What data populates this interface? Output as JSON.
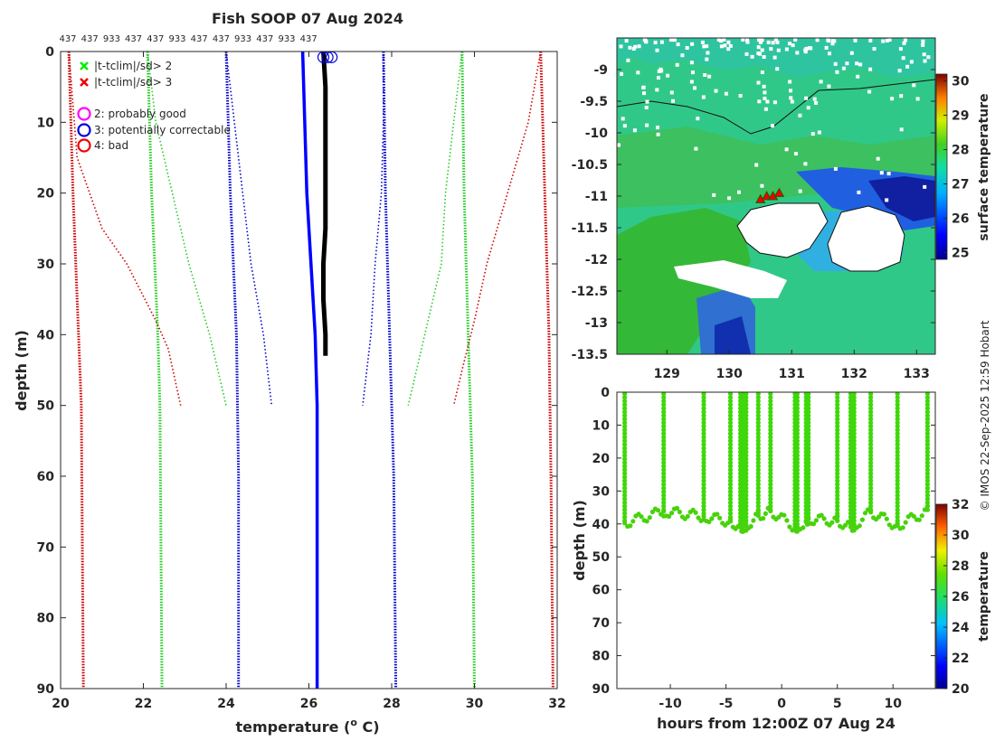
{
  "title": "Fish SOOP 07 Aug 2024",
  "watermark": "© IMOS 22-Sep-2025 12:59 Hobart",
  "chart_data": [
    {
      "id": "profile",
      "type": "line",
      "xlabel": "temperature (",
      "xlabel_sup": "o",
      "xlabel_suffix": " C)",
      "ylabel": "depth (m)",
      "xlim": [
        20,
        32
      ],
      "ylim": [
        0,
        90
      ],
      "xticks": [
        20,
        22,
        24,
        26,
        28,
        30,
        32
      ],
      "yticks": [
        0,
        10,
        20,
        30,
        40,
        50,
        60,
        70,
        80,
        90
      ],
      "top_labels": [
        "437",
        "437",
        "933",
        "437",
        "437",
        "933",
        "437",
        "437",
        "933",
        "437",
        "933",
        "437"
      ],
      "legend": [
        {
          "symbol": "x",
          "color": "#00ee00",
          "label": "|t-tclim|/sd> 2"
        },
        {
          "symbol": "x",
          "color": "#ee0000",
          "label": "|t-tclim|/sd> 3"
        },
        {
          "symbol": "o",
          "color": "#ff00ff",
          "label": "2: probably good"
        },
        {
          "symbol": "o",
          "color": "#0000dd",
          "label": "3: potentially correctable"
        },
        {
          "symbol": "o",
          "color": "#ee0000",
          "label": "4: bad"
        }
      ],
      "series": [
        {
          "name": "clim-3sd-low",
          "color": "#cc0000",
          "style": "dotted",
          "points": [
            [
              20.2,
              0
            ],
            [
              20.3,
              20
            ],
            [
              20.4,
              35
            ],
            [
              20.5,
              50
            ],
            [
              20.55,
              90
            ]
          ]
        },
        {
          "name": "clim-3sd-high",
          "color": "#cc0000",
          "style": "dotted",
          "points": [
            [
              31.6,
              0
            ],
            [
              31.7,
              20
            ],
            [
              31.8,
              40
            ],
            [
              31.85,
              60
            ],
            [
              31.9,
              90
            ]
          ]
        },
        {
          "name": "clim-2sd-low",
          "color": "#22cc22",
          "style": "dotted",
          "points": [
            [
              22.1,
              0
            ],
            [
              22.2,
              20
            ],
            [
              22.35,
              40
            ],
            [
              22.4,
              50
            ],
            [
              22.45,
              90
            ]
          ]
        },
        {
          "name": "clim-2sd-high",
          "color": "#22cc22",
          "style": "dotted",
          "points": [
            [
              29.7,
              0
            ],
            [
              29.75,
              20
            ],
            [
              29.85,
              40
            ],
            [
              29.95,
              60
            ],
            [
              30.0,
              90
            ]
          ]
        },
        {
          "name": "clim-1sd-low",
          "color": "#0000cc",
          "style": "dotted",
          "points": [
            [
              24.0,
              0
            ],
            [
              24.1,
              20
            ],
            [
              24.25,
              40
            ],
            [
              24.3,
              60
            ],
            [
              24.3,
              90
            ]
          ]
        },
        {
          "name": "clim-1sd-high",
          "color": "#0000cc",
          "style": "dotted",
          "points": [
            [
              27.8,
              0
            ],
            [
              27.85,
              20
            ],
            [
              27.95,
              40
            ],
            [
              28.05,
              60
            ],
            [
              28.1,
              90
            ]
          ]
        },
        {
          "name": "local-3sd-low",
          "color": "#cc0000",
          "style": "thin-dotted",
          "points": [
            [
              20.2,
              0
            ],
            [
              20.4,
              15
            ],
            [
              21.0,
              25
            ],
            [
              21.6,
              30
            ],
            [
              22.3,
              38
            ],
            [
              22.6,
              42
            ],
            [
              22.9,
              50
            ]
          ]
        },
        {
          "name": "local-3sd-high",
          "color": "#cc0000",
          "style": "thin-dotted",
          "points": [
            [
              31.6,
              0
            ],
            [
              31.3,
              10
            ],
            [
              30.8,
              20
            ],
            [
              30.3,
              30
            ],
            [
              30.0,
              38
            ],
            [
              29.7,
              45
            ],
            [
              29.5,
              50
            ]
          ]
        },
        {
          "name": "local-2sd-low",
          "color": "#22cc22",
          "style": "thin-dotted",
          "points": [
            [
              22.1,
              0
            ],
            [
              22.3,
              10
            ],
            [
              22.7,
              20
            ],
            [
              23.1,
              30
            ],
            [
              23.6,
              40
            ],
            [
              24.0,
              50
            ]
          ]
        },
        {
          "name": "local-2sd-high",
          "color": "#22cc22",
          "style": "thin-dotted",
          "points": [
            [
              29.7,
              0
            ],
            [
              29.5,
              10
            ],
            [
              29.3,
              20
            ],
            [
              29.2,
              30
            ],
            [
              28.8,
              40
            ],
            [
              28.4,
              50
            ]
          ]
        },
        {
          "name": "local-1sd-low",
          "color": "#0000cc",
          "style": "thin-dotted",
          "points": [
            [
              24.0,
              0
            ],
            [
              24.2,
              10
            ],
            [
              24.4,
              20
            ],
            [
              24.6,
              30
            ],
            [
              24.9,
              40
            ],
            [
              25.1,
              50
            ]
          ]
        },
        {
          "name": "local-1sd-high",
          "color": "#0000cc",
          "style": "thin-dotted",
          "points": [
            [
              27.8,
              0
            ],
            [
              27.8,
              10
            ],
            [
              27.75,
              20
            ],
            [
              27.6,
              30
            ],
            [
              27.5,
              40
            ],
            [
              27.3,
              50
            ]
          ]
        },
        {
          "name": "climatology-mean",
          "color": "#0000ff",
          "style": "solid",
          "points": [
            [
              25.85,
              0
            ],
            [
              25.9,
              10
            ],
            [
              25.95,
              20
            ],
            [
              26.05,
              30
            ],
            [
              26.15,
              40
            ],
            [
              26.2,
              50
            ],
            [
              26.2,
              70
            ],
            [
              26.2,
              90
            ]
          ]
        },
        {
          "name": "xbt-profile",
          "color": "#000000",
          "style": "thick",
          "points": [
            [
              26.35,
              0
            ],
            [
              26.4,
              5
            ],
            [
              26.4,
              15
            ],
            [
              26.4,
              25
            ],
            [
              26.35,
              30
            ],
            [
              26.35,
              35
            ],
            [
              26.4,
              40
            ],
            [
              26.4,
              43
            ]
          ]
        }
      ],
      "flag_markers": [
        [
          26.35,
          0.8
        ],
        [
          26.45,
          0.8
        ],
        [
          26.55,
          0.8
        ]
      ]
    },
    {
      "id": "map",
      "type": "heatmap",
      "xlim": [
        128.2,
        133.3
      ],
      "ylim": [
        -13.5,
        -8.5
      ],
      "xticks": [
        129,
        130,
        131,
        132,
        133
      ],
      "yticks": [
        -9,
        -9.5,
        -10,
        -10.5,
        -11,
        -11.5,
        -12,
        -12.5,
        -13,
        -13.5
      ],
      "ytick_labels": [
        "-9",
        "-9.5",
        "-10",
        "-10.5",
        "-11",
        "-11.5",
        "-12",
        "-12.5",
        "-13",
        "-13.5"
      ],
      "colorbar": {
        "label": "surface temperature",
        "range": [
          24.8,
          30.2
        ],
        "ticks": [
          25,
          26,
          27,
          28,
          29,
          30
        ]
      },
      "track": [
        [
          130.5,
          -11.05
        ],
        [
          130.6,
          -11.0
        ],
        [
          130.7,
          -11.0
        ],
        [
          130.8,
          -10.95
        ]
      ]
    },
    {
      "id": "timeseries",
      "type": "scatter",
      "xlabel": "hours from 12:00Z 07 Aug 24",
      "ylabel": "depth (m)",
      "xlim": [
        -14.8,
        13.8
      ],
      "ylim": [
        0,
        90
      ],
      "xticks": [
        -10,
        -5,
        0,
        5,
        10
      ],
      "yticks": [
        0,
        10,
        20,
        30,
        40,
        50,
        60,
        70,
        80,
        90
      ],
      "colorbar": {
        "label": "temperature",
        "range": [
          20,
          32
        ],
        "ticks": [
          20,
          22,
          24,
          26,
          28,
          30,
          32
        ]
      },
      "cast_times": [
        -14.1,
        -10.6,
        -7.0,
        -4.6,
        -3.7,
        -3.5,
        -3.2,
        -2.1,
        -1.0,
        1.2,
        1.4,
        2.2,
        2.4,
        5.0,
        6.2,
        6.5,
        8.0,
        10.4,
        13.1
      ]
    }
  ]
}
